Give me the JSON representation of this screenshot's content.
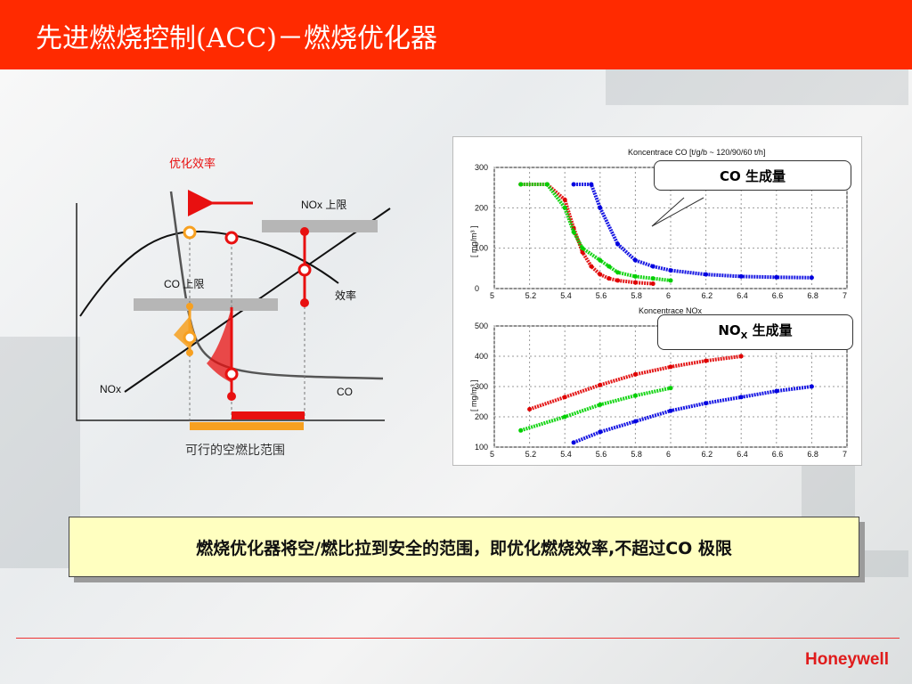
{
  "slide": {
    "title": "先进燃烧控制(ACC)－燃烧优化器",
    "summary": "燃烧优化器将空/燃比拉到安全的范围，即优化燃烧效率,不超过CO 极限",
    "logo": "Honeywell"
  },
  "concept_diagram": {
    "optimization_efficiency_label": "优化效率",
    "nox_limit_label": "NOx 上限",
    "co_limit_label": "CO 上限",
    "efficiency_label": "效率",
    "nox_label": "NOx",
    "co_label": "CO",
    "range_label": "可行的空燃比范围",
    "colors": {
      "red": "#e81010",
      "orange": "#f7a020",
      "limit_bar": "#b6b6b6"
    }
  },
  "charts": {
    "co_chart": {
      "header": "Koncentrace CO      [t/g/b ~ 120/90/60 t/h]",
      "ylabel": "[ mg/m³ ]",
      "xlabel": "Koncentrace NOx",
      "yticks": [
        "300",
        "200",
        "100",
        "0"
      ],
      "xticks": [
        "5",
        "5.2",
        "5.4",
        "5.6",
        "5.8",
        "6",
        "6.2",
        "6.4",
        "6.6",
        "6.8",
        "7"
      ],
      "callout": "CO 生成量"
    },
    "nox_chart": {
      "ylabel": "[ mg/m³ ]",
      "yticks": [
        "500",
        "400",
        "300",
        "200",
        "100"
      ],
      "xticks": [
        "5",
        "5.2",
        "5.4",
        "5.6",
        "5.8",
        "6",
        "6.2",
        "6.4",
        "6.6",
        "6.8",
        "7"
      ],
      "callout_main": "NO",
      "callout_sub": "X",
      "callout_rest": " 生成量"
    }
  },
  "chart_data": [
    {
      "type": "scatter",
      "xlim": [
        5,
        7
      ],
      "ylim": [
        0,
        300
      ],
      "series": [
        {
          "color": "#e00000",
          "x": [
            5.15,
            5.3,
            5.4,
            5.45,
            5.5,
            5.55,
            5.6,
            5.65,
            5.7,
            5.8,
            5.9
          ],
          "y": [
            258,
            258,
            220,
            150,
            90,
            55,
            35,
            25,
            20,
            15,
            12
          ]
        },
        {
          "color": "#00d000",
          "x": [
            5.15,
            5.3,
            5.4,
            5.45,
            5.5,
            5.6,
            5.65,
            5.7,
            5.8,
            5.9,
            6.0
          ],
          "y": [
            258,
            258,
            200,
            140,
            100,
            70,
            55,
            40,
            30,
            25,
            20
          ]
        },
        {
          "color": "#0000e0",
          "x": [
            5.45,
            5.55,
            5.6,
            5.7,
            5.8,
            5.9,
            6.0,
            6.2,
            6.4,
            6.6,
            6.8
          ],
          "y": [
            258,
            258,
            200,
            110,
            70,
            55,
            45,
            35,
            30,
            28,
            27
          ]
        }
      ]
    },
    {
      "type": "scatter",
      "xlim": [
        5,
        7
      ],
      "ylim": [
        100,
        500
      ],
      "series": [
        {
          "color": "#e00000",
          "x": [
            5.2,
            5.4,
            5.6,
            5.8,
            6.0,
            6.2,
            6.4
          ],
          "y": [
            225,
            265,
            305,
            340,
            365,
            385,
            400
          ]
        },
        {
          "color": "#00d000",
          "x": [
            5.15,
            5.4,
            5.6,
            5.8,
            6.0
          ],
          "y": [
            155,
            200,
            240,
            270,
            295
          ]
        },
        {
          "color": "#0000e0",
          "x": [
            5.45,
            5.6,
            5.8,
            6.0,
            6.2,
            6.4,
            6.6,
            6.8
          ],
          "y": [
            115,
            150,
            185,
            220,
            245,
            265,
            285,
            300
          ]
        }
      ]
    }
  ]
}
